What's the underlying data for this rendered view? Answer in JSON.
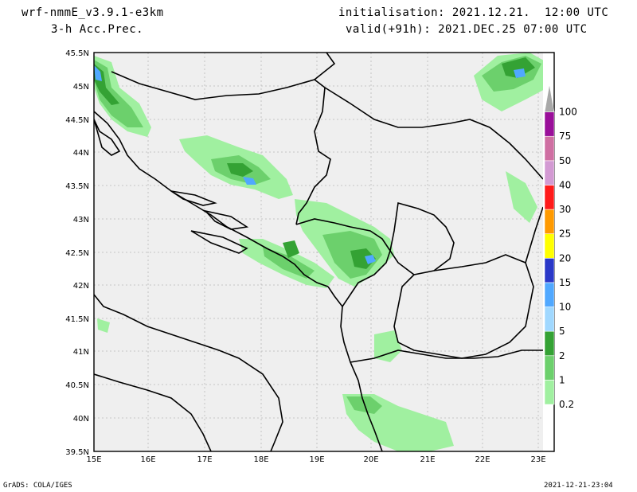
{
  "header": {
    "model": "wrf-nmmE_v3.9.1-e3km",
    "field": "3-h Acc.Prec.",
    "init": "initialisation: 2021.12.21.  12:00 UTC",
    "valid": "valid(+91h): 2021.DEC.25 07:00 UTC"
  },
  "map": {
    "lat_labels": [
      "45.5N",
      "45N",
      "44.5N",
      "44N",
      "43.5N",
      "43N",
      "42.5N",
      "42N",
      "41.5N",
      "41N",
      "40.5N",
      "40N",
      "39.5N"
    ],
    "lon_labels": [
      "15E",
      "16E",
      "17E",
      "18E",
      "19E",
      "20E",
      "21E",
      "22E",
      "23E"
    ],
    "background_color": "#efefef",
    "grid": "dotted"
  },
  "colorbar": {
    "levels": [
      "0.2",
      "1",
      "2",
      "5",
      "10",
      "15",
      "20",
      "25",
      "30",
      "40",
      "50",
      "75",
      "100"
    ],
    "colors": [
      "#a0f0a0",
      "#6cd06c",
      "#34a234",
      "#a0d8ff",
      "#50a8ff",
      "#2a38c8",
      "#ffff00",
      "#ff9a00",
      "#ff1a1a",
      "#d39ad3",
      "#cf6fa2",
      "#9a0f9a",
      "#a8a8a8"
    ]
  },
  "footer": {
    "left": "GrADS: COLA/IGES",
    "right": "2021-12-21-23:04"
  }
}
